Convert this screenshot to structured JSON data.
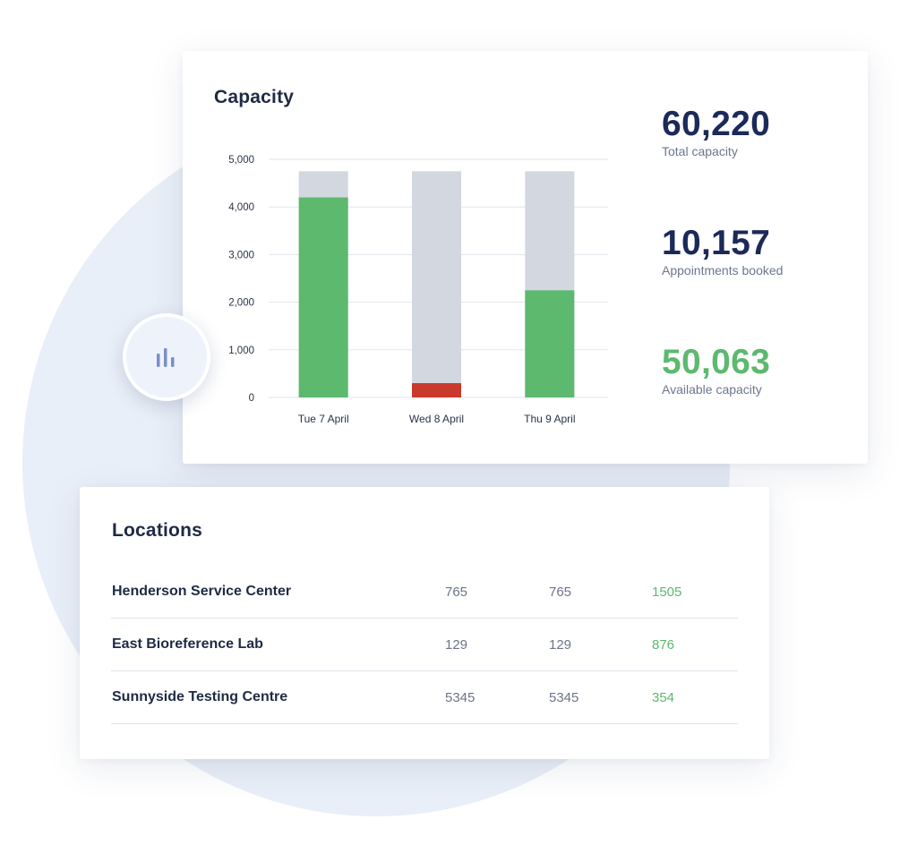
{
  "capacity": {
    "title": "Capacity",
    "stats": [
      {
        "value": "60,220",
        "label": "Total capacity",
        "color": "#1b2a59"
      },
      {
        "value": "10,157",
        "label": "Appointments booked",
        "color": "#1b2a59"
      },
      {
        "value": "50,063",
        "label": "Available capacity",
        "color": "#5cb96e"
      }
    ]
  },
  "chart_data": {
    "type": "bar",
    "categories": [
      "Tue 7 April",
      "Wed 8 April",
      "Thu 9 April"
    ],
    "series": [
      {
        "values": [
          4750,
          4750,
          4750
        ],
        "color": "#d3d7e0"
      },
      {
        "values": [
          4200,
          300,
          2250
        ],
        "colors": [
          "#5cb96e",
          "#c9392c",
          "#5cb96e"
        ]
      }
    ],
    "yticks": [
      "0",
      "1,000",
      "2,000",
      "3,000",
      "4,000",
      "5,000"
    ],
    "ylim": [
      0,
      5000
    ],
    "grid": true,
    "title": "",
    "xlabel": "",
    "ylabel": ""
  },
  "locations": {
    "title": "Locations",
    "rows": [
      {
        "name": "Henderson Service Center",
        "c1": "765",
        "c2": "765",
        "c3": "1505"
      },
      {
        "name": "East Bioreference Lab",
        "c1": "129",
        "c2": "129",
        "c3": "876"
      },
      {
        "name": "Sunnyside Testing Centre",
        "c1": "5345",
        "c2": "5345",
        "c3": "354"
      }
    ]
  },
  "icons": {
    "chart_bubble": "bar-chart-icon",
    "chart_bubble_color": "#7a8fc4"
  }
}
